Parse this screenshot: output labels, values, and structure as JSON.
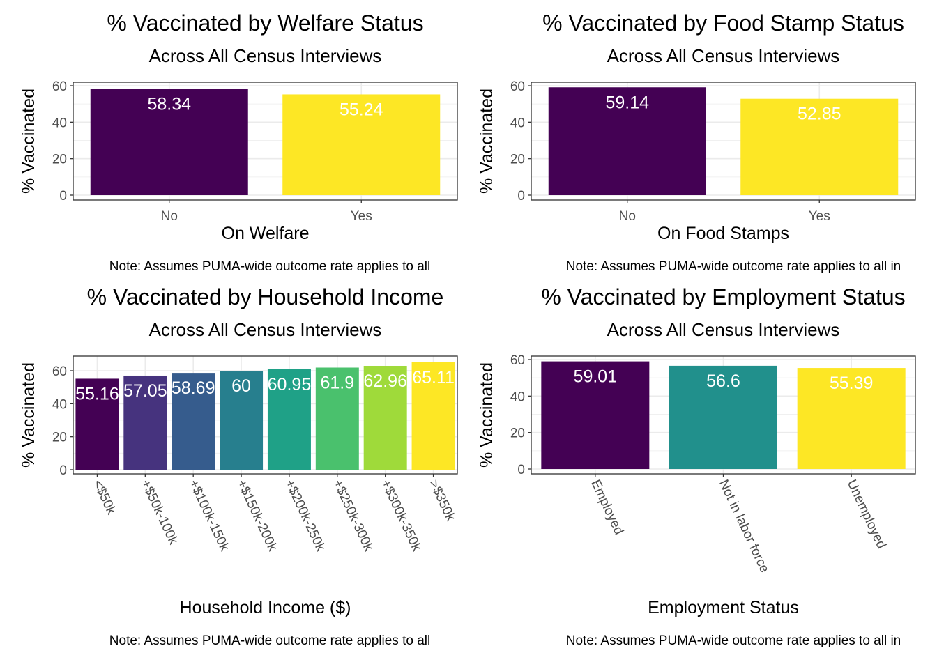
{
  "chart_data": [
    {
      "type": "bar",
      "title": "% Vaccinated by Welfare Status",
      "subtitle": "Across All Census Interviews",
      "xlabel": "On Welfare",
      "ylabel": "% Vaccinated",
      "note": "Note: Assumes PUMA-wide outcome rate applies to all",
      "categories": [
        "No",
        "Yes"
      ],
      "values": [
        58.34,
        55.24
      ],
      "data_labels": [
        "58.34",
        "55.24"
      ],
      "colors": [
        "#440154",
        "#FDE725"
      ],
      "ylim": [
        0,
        60
      ],
      "yticks": [
        0,
        20,
        40,
        60
      ],
      "grid": true,
      "legend": "none"
    },
    {
      "type": "bar",
      "title": "% Vaccinated by Food Stamp Status",
      "subtitle": "Across All Census Interviews",
      "xlabel": "On Food Stamps",
      "ylabel": "% Vaccinated",
      "note": "Note: Assumes PUMA-wide outcome rate applies to all in",
      "categories": [
        "No",
        "Yes"
      ],
      "values": [
        59.14,
        52.85
      ],
      "data_labels": [
        "59.14",
        "52.85"
      ],
      "colors": [
        "#440154",
        "#FDE725"
      ],
      "ylim": [
        0,
        60
      ],
      "yticks": [
        0,
        20,
        40,
        60
      ],
      "grid": true,
      "legend": "none"
    },
    {
      "type": "bar",
      "title": "% Vaccinated by Household Income",
      "subtitle": "Across All Census Interviews",
      "xlabel": "Household Income ($)",
      "ylabel": "% Vaccinated",
      "note": "Note: Assumes PUMA-wide outcome rate applies to all",
      "categories": [
        "<$50k",
        "+$50k-100k",
        "+$100k-150k",
        "+$150k-200k",
        "+$200k-250k",
        "+$250k-300k",
        "+$300k-350k",
        ">$350k"
      ],
      "values": [
        55.16,
        57.05,
        58.69,
        60,
        60.95,
        61.9,
        62.96,
        65.11
      ],
      "data_labels": [
        "55.16",
        "57.05",
        "58.69",
        "60",
        "60.95",
        "61.9",
        "62.96",
        "65.11"
      ],
      "colors": [
        "#440154",
        "#46337E",
        "#365C8D",
        "#277F8E",
        "#1FA187",
        "#4AC16D",
        "#9FDA3A",
        "#FDE725"
      ],
      "ylim": [
        0,
        60
      ],
      "yticks": [
        0,
        20,
        40,
        60
      ],
      "grid": true,
      "legend": "none"
    },
    {
      "type": "bar",
      "title": "% Vaccinated by Employment Status",
      "subtitle": "Across All Census Interviews",
      "xlabel": "Employment Status",
      "ylabel": "% Vaccinated",
      "note": "Note: Assumes PUMA-wide outcome rate applies to all in",
      "categories": [
        "Employed",
        "Not in labor force",
        "Unemployed"
      ],
      "values": [
        59.01,
        56.6,
        55.39
      ],
      "data_labels": [
        "59.01",
        "56.6",
        "55.39"
      ],
      "colors": [
        "#440154",
        "#21908C",
        "#FDE725"
      ],
      "ylim": [
        0,
        60
      ],
      "yticks": [
        0,
        20,
        40,
        60
      ],
      "grid": true,
      "legend": "none"
    }
  ]
}
